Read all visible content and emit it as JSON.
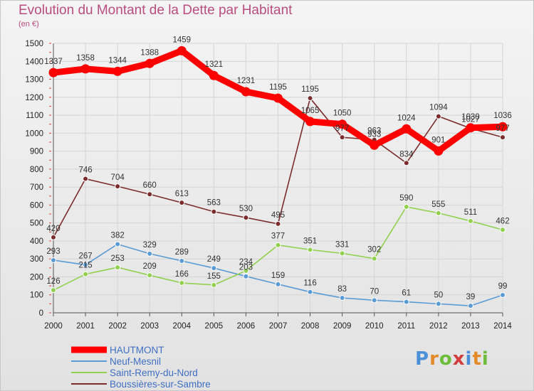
{
  "title": "Evolution du Montant de la Dette par Habitant",
  "unit": "(en €)",
  "logo": {
    "text": "Proxiti",
    "colors": [
      "#4a8fd8",
      "#e38b2a",
      "#6dbd3b",
      "#d33c3c",
      "#4a8fd8",
      "#e38b2a",
      "#6dbd3b"
    ]
  },
  "chart_data": {
    "type": "line",
    "title": "Evolution du Montant de la Dette par Habitant",
    "ylabel": "(en €)",
    "xlabel": "",
    "x": [
      "2000",
      "2001",
      "2002",
      "2003",
      "2004",
      "2005",
      "2006",
      "2007",
      "2008",
      "2009",
      "2010",
      "2011",
      "2012",
      "2013",
      "2014"
    ],
    "ylim": [
      0,
      1500
    ],
    "yticks": [
      0,
      100,
      200,
      300,
      400,
      500,
      600,
      700,
      800,
      900,
      1000,
      1100,
      1200,
      1300,
      1400,
      1500
    ],
    "grid": true,
    "legend": "bottom-left",
    "series": [
      {
        "name": "HAUTMONT",
        "color": "#ff0000",
        "values": [
          1337,
          1358,
          1344,
          1388,
          1459,
          1321,
          1231,
          1195,
          1065,
          1050,
          933,
          1024,
          901,
          1030,
          1036
        ]
      },
      {
        "name": "Neuf-Mesnil",
        "color": "#5b9bd5",
        "values": [
          293,
          267,
          382,
          329,
          289,
          249,
          203,
          159,
          116,
          83,
          70,
          61,
          50,
          39,
          99
        ]
      },
      {
        "name": "Saint-Remy-du-Nord",
        "color": "#92d050",
        "values": [
          126,
          215,
          253,
          209,
          166,
          155,
          234,
          377,
          351,
          331,
          302,
          590,
          555,
          511,
          462
        ]
      },
      {
        "name": "Boussières-sur-Sambre",
        "color": "#7b2c2c",
        "values": [
          420,
          746,
          704,
          660,
          613,
          563,
          530,
          495,
          1195,
          977,
          963,
          834,
          1094,
          1027,
          977
        ]
      }
    ]
  }
}
